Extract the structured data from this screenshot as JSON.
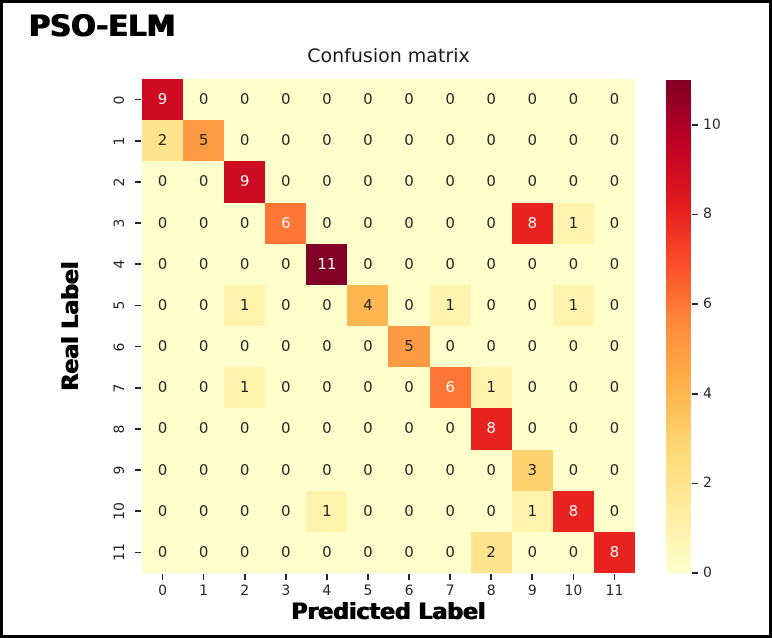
{
  "header": {
    "model_name": "PSO-ELM"
  },
  "chart_data": {
    "type": "heatmap",
    "title": "Confusion matrix",
    "xlabel": "Predicted Label",
    "ylabel": "Real Label",
    "x_tick_labels": [
      "0",
      "1",
      "2",
      "3",
      "4",
      "5",
      "6",
      "7",
      "8",
      "9",
      "10",
      "11"
    ],
    "y_tick_labels": [
      "0",
      "1",
      "2",
      "3",
      "4",
      "5",
      "6",
      "7",
      "8",
      "9",
      "10",
      "11"
    ],
    "matrix": [
      [
        9,
        0,
        0,
        0,
        0,
        0,
        0,
        0,
        0,
        0,
        0,
        0
      ],
      [
        2,
        5,
        0,
        0,
        0,
        0,
        0,
        0,
        0,
        0,
        0,
        0
      ],
      [
        0,
        0,
        9,
        0,
        0,
        0,
        0,
        0,
        0,
        0,
        0,
        0
      ],
      [
        0,
        0,
        0,
        6,
        0,
        0,
        0,
        0,
        0,
        8,
        1,
        0
      ],
      [
        0,
        0,
        0,
        0,
        11,
        0,
        0,
        0,
        0,
        0,
        0,
        0
      ],
      [
        0,
        0,
        1,
        0,
        0,
        4,
        0,
        1,
        0,
        0,
        1,
        0
      ],
      [
        0,
        0,
        0,
        0,
        0,
        0,
        5,
        0,
        0,
        0,
        0,
        0
      ],
      [
        0,
        0,
        1,
        0,
        0,
        0,
        0,
        6,
        1,
        0,
        0,
        0
      ],
      [
        0,
        0,
        0,
        0,
        0,
        0,
        0,
        0,
        8,
        0,
        0,
        0
      ],
      [
        0,
        0,
        0,
        0,
        0,
        0,
        0,
        0,
        0,
        3,
        0,
        0
      ],
      [
        0,
        0,
        0,
        0,
        1,
        0,
        0,
        0,
        0,
        1,
        8,
        0
      ],
      [
        0,
        0,
        0,
        0,
        0,
        0,
        0,
        0,
        2,
        0,
        0,
        8
      ]
    ],
    "vmin": 0,
    "vmax": 11,
    "colormap": "YlOrRd",
    "colormap_stops": [
      "#ffffcc",
      "#ffeda0",
      "#fed976",
      "#feb24c",
      "#fd8d3c",
      "#fc4e2a",
      "#e31a1c",
      "#bd0026",
      "#800026"
    ],
    "colorbar_tick_values": [
      0,
      2,
      4,
      6,
      8,
      10
    ],
    "colorbar_tick_labels": [
      "0",
      "2",
      "4",
      "6",
      "8",
      "10"
    ],
    "annotation_color_dark": "#262626",
    "annotation_color_light": "#f5f5f5",
    "legend_position": "right-colorbar",
    "grid": false
  }
}
